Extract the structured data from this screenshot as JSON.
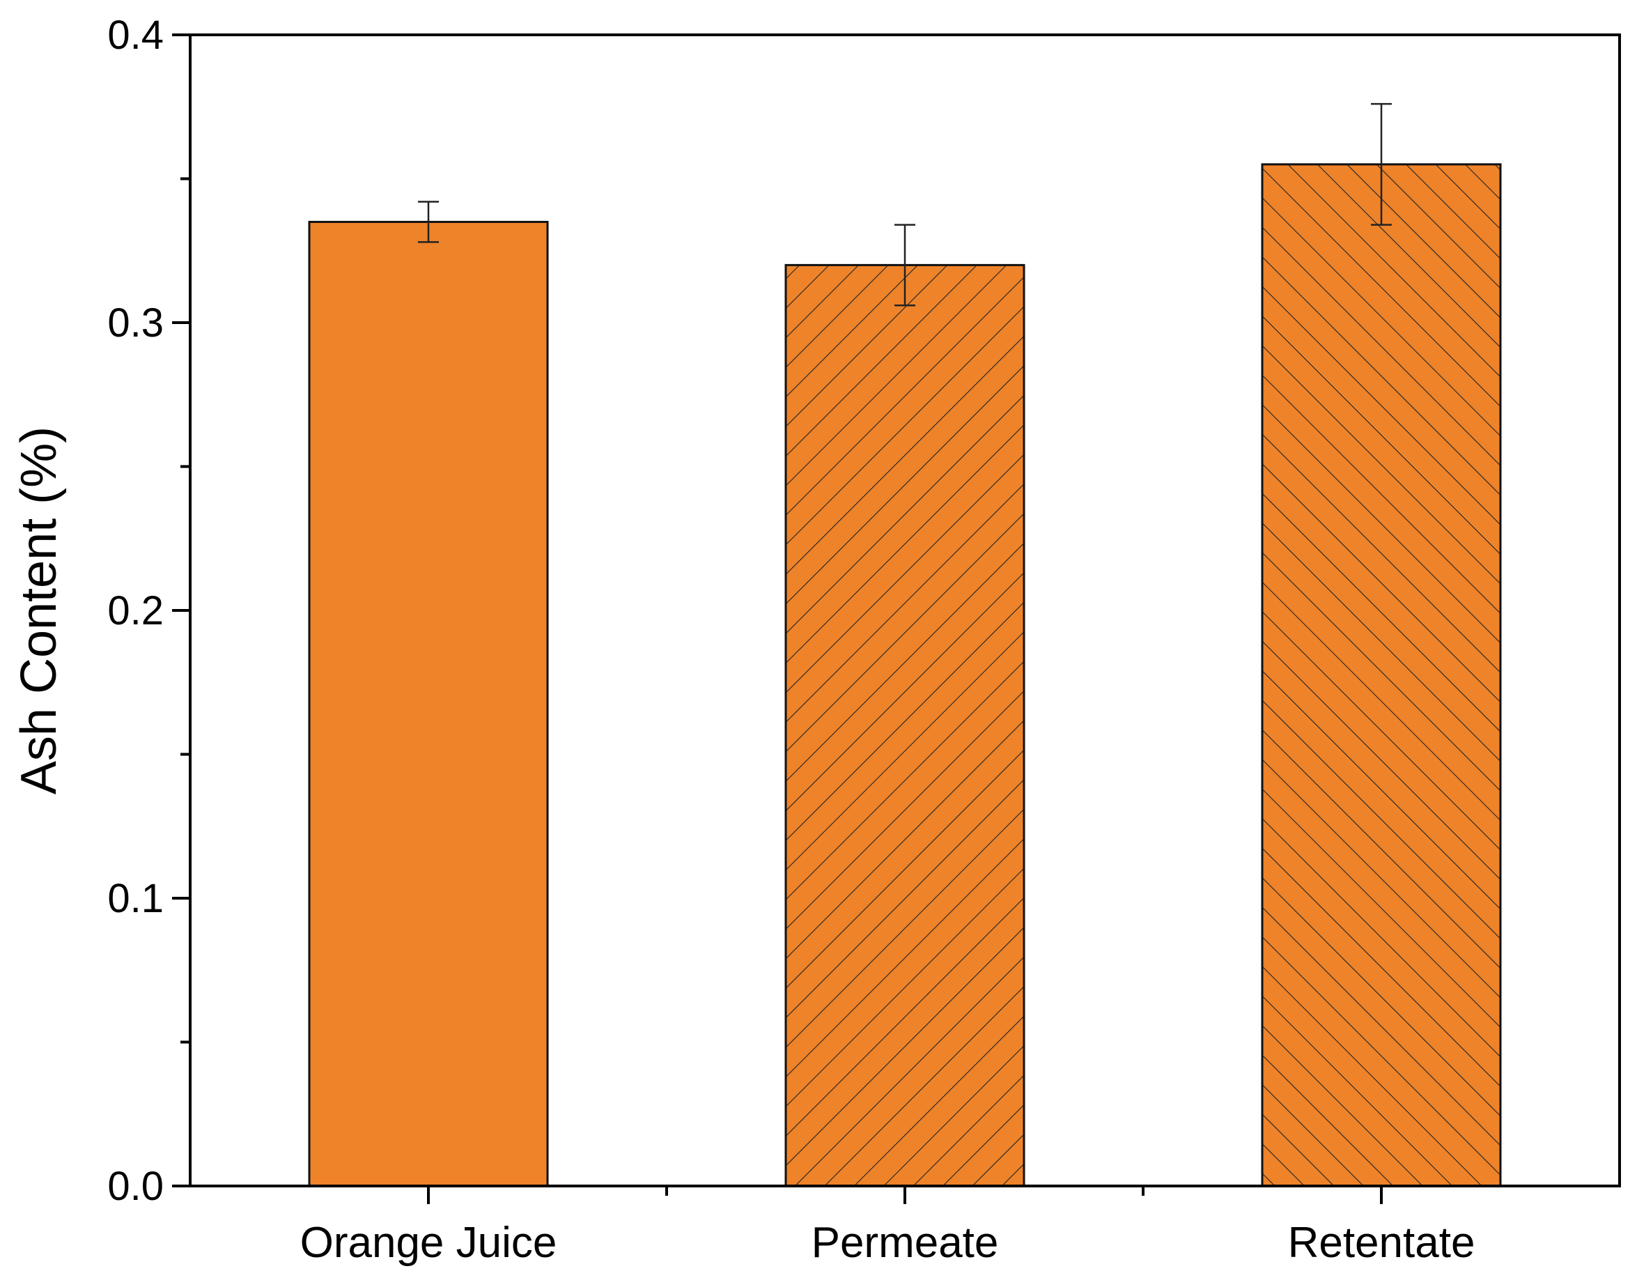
{
  "chart_data": {
    "type": "bar",
    "title": "",
    "xlabel": "",
    "ylabel": "Ash Content (%)",
    "ylim": [
      0,
      0.4
    ],
    "yticks": [
      "0.0",
      "0.1",
      "0.2",
      "0.3",
      "0.4"
    ],
    "categories": [
      "Orange Juice",
      "Permeate",
      "Retentate"
    ],
    "values": [
      0.335,
      0.32,
      0.355
    ],
    "errors": [
      0.007,
      0.014,
      0.021
    ],
    "patterns": [
      "solid",
      "forward-diagonal",
      "backward-diagonal"
    ],
    "bar_color": "#EE8329",
    "grid": false
  }
}
